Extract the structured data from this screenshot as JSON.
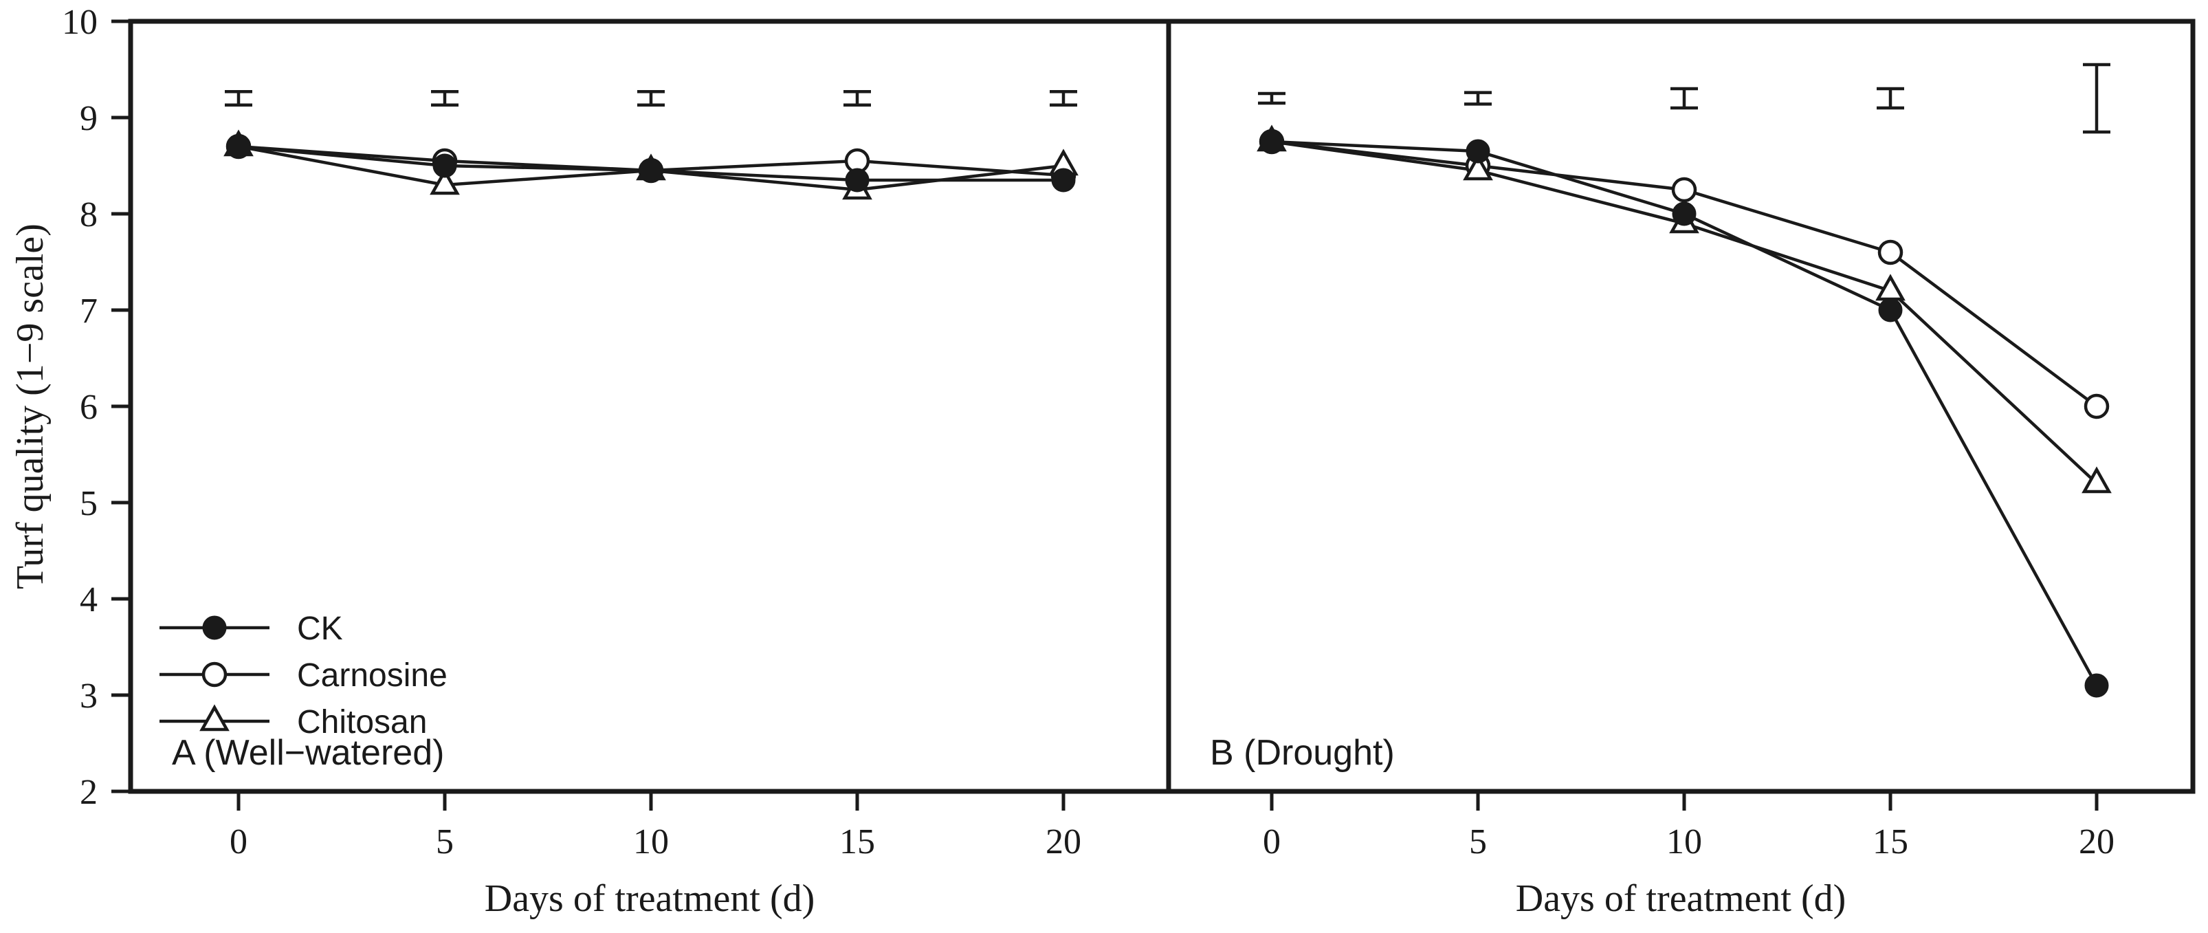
{
  "figure": {
    "ylabel": "Turf quality (1−9 scale)",
    "xlabel": "Days of treatment (d)",
    "colors": {
      "line": "#1a1a1a",
      "background": "#ffffff"
    }
  },
  "chart_data": [
    {
      "type": "line",
      "panel": "A",
      "title": "A (Well−watered)",
      "xlabel": "Days of treatment (d)",
      "ylabel": "Turf quality (1−9 scale)",
      "x": [
        0,
        5,
        10,
        15,
        20
      ],
      "xlim": [
        0,
        20
      ],
      "ylim": [
        2,
        10
      ],
      "yticks": [
        2,
        3,
        4,
        5,
        6,
        7,
        8,
        9,
        10
      ],
      "grid": false,
      "legend_position": "lower-left",
      "show_legend": true,
      "series": [
        {
          "name": "CK",
          "marker": "filled-circle",
          "values": [
            8.7,
            8.5,
            8.45,
            8.35,
            8.35
          ]
        },
        {
          "name": "Carnosine",
          "marker": "open-circle",
          "values": [
            8.7,
            8.55,
            8.45,
            8.55,
            8.4
          ]
        },
        {
          "name": "Chitosan",
          "marker": "open-triangle",
          "values": [
            8.7,
            8.3,
            8.45,
            8.25,
            8.5
          ]
        }
      ],
      "error_bars": {
        "center_y": 9.2,
        "half_heights": [
          0.07,
          0.07,
          0.07,
          0.07,
          0.07
        ]
      }
    },
    {
      "type": "line",
      "panel": "B",
      "title": "B (Drought)",
      "xlabel": "Days of treatment (d)",
      "ylabel": "Turf quality (1−9 scale)",
      "x": [
        0,
        5,
        10,
        15,
        20
      ],
      "xlim": [
        0,
        20
      ],
      "ylim": [
        2,
        10
      ],
      "yticks": [
        2,
        3,
        4,
        5,
        6,
        7,
        8,
        9,
        10
      ],
      "grid": false,
      "legend_position": "none",
      "show_legend": false,
      "series": [
        {
          "name": "CK",
          "marker": "filled-circle",
          "values": [
            8.75,
            8.65,
            8.0,
            7.0,
            3.1
          ]
        },
        {
          "name": "Carnosine",
          "marker": "open-circle",
          "values": [
            8.75,
            8.5,
            8.25,
            7.6,
            6.0
          ]
        },
        {
          "name": "Chitosan",
          "marker": "open-triangle",
          "values": [
            8.75,
            8.45,
            7.9,
            7.2,
            5.2
          ]
        }
      ],
      "error_bars": {
        "center_y": 9.2,
        "half_heights": [
          0.05,
          0.06,
          0.1,
          0.1,
          0.35
        ]
      }
    }
  ]
}
